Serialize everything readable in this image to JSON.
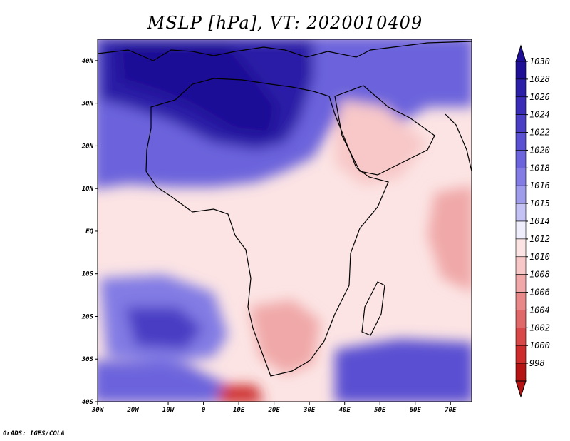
{
  "title": "MSLP [hPa], VT: 2020010409",
  "credit": "GrADS: IGES/COLA",
  "map": {
    "lat_labels": [
      "40N",
      "30N",
      "20N",
      "10N",
      "EQ",
      "10S",
      "20S",
      "30S",
      "40S"
    ],
    "lon_labels": [
      "30W",
      "20W",
      "10W",
      "0",
      "10E",
      "20E",
      "30E",
      "40E",
      "50E",
      "60E",
      "70E"
    ],
    "lat_range": [
      -40,
      45
    ],
    "lon_range": [
      -30,
      76
    ]
  },
  "legend": {
    "labels": [
      "1030",
      "1028",
      "1026",
      "1024",
      "1022",
      "1020",
      "1018",
      "1016",
      "1015",
      "1014",
      "1012",
      "1010",
      "1008",
      "1006",
      "1004",
      "1002",
      "1000",
      "998"
    ],
    "colors": [
      "#1e0f96",
      "#2a1fa6",
      "#3a2cb6",
      "#4a3ec4",
      "#5a50d2",
      "#6c64dc",
      "#827ce4",
      "#a09cec",
      "#c4c2f4",
      "#eeeefc",
      "#fce4e4",
      "#f8c8c8",
      "#f0a8a8",
      "#e88888",
      "#e06868",
      "#d84848",
      "#cc2c2c",
      "#b41414"
    ]
  }
}
